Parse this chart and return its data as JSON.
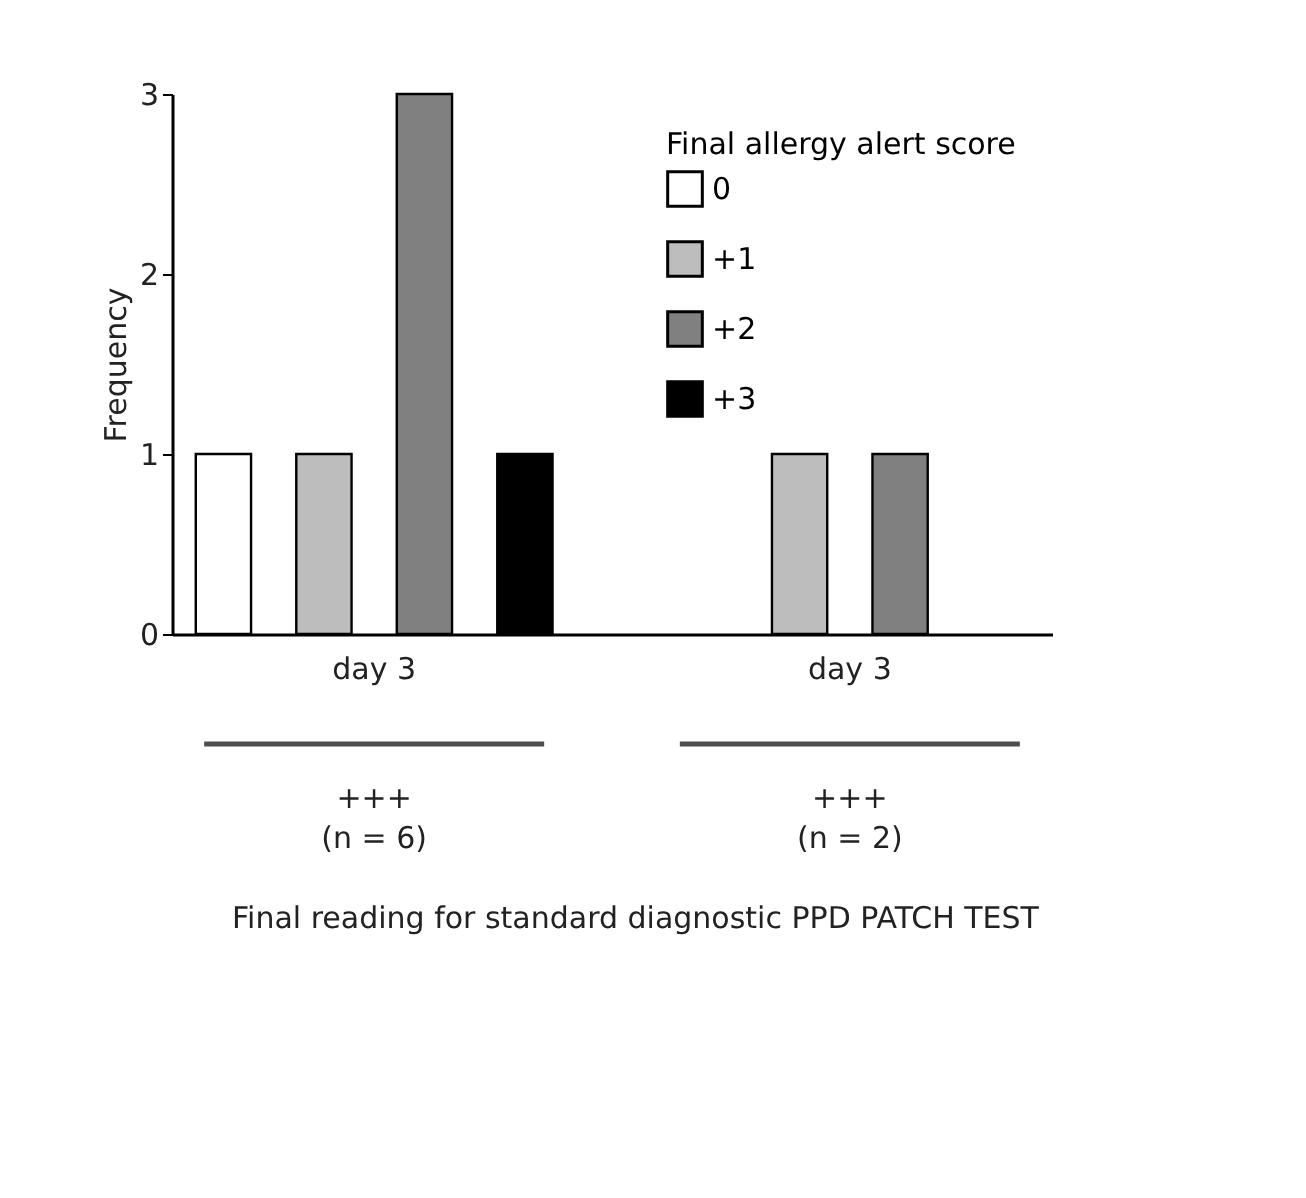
{
  "chart_data": {
    "type": "bar",
    "legend_title": "Final allergy alert score",
    "ylabel": "Frequency",
    "categories": [
      "day 3",
      "day 3"
    ],
    "series": [
      {
        "name": "0",
        "color": "#ffffff",
        "values": [
          1,
          null
        ]
      },
      {
        "name": "+1",
        "color": "#bdbdbd",
        "values": [
          1,
          1
        ]
      },
      {
        "name": "+2",
        "color": "#808080",
        "values": [
          3,
          1
        ]
      },
      {
        "name": "+3",
        "color": "#000000",
        "values": [
          1,
          null
        ]
      }
    ],
    "ylim": [
      0,
      3
    ],
    "yticks": [
      0,
      1,
      2,
      3
    ],
    "grid": false,
    "legend": "top right",
    "annotations": [
      "+++\n(n = 6)",
      "+++\n(n = 2)",
      "Final reading for standard diagnostic PPD PATCH TEST"
    ]
  }
}
